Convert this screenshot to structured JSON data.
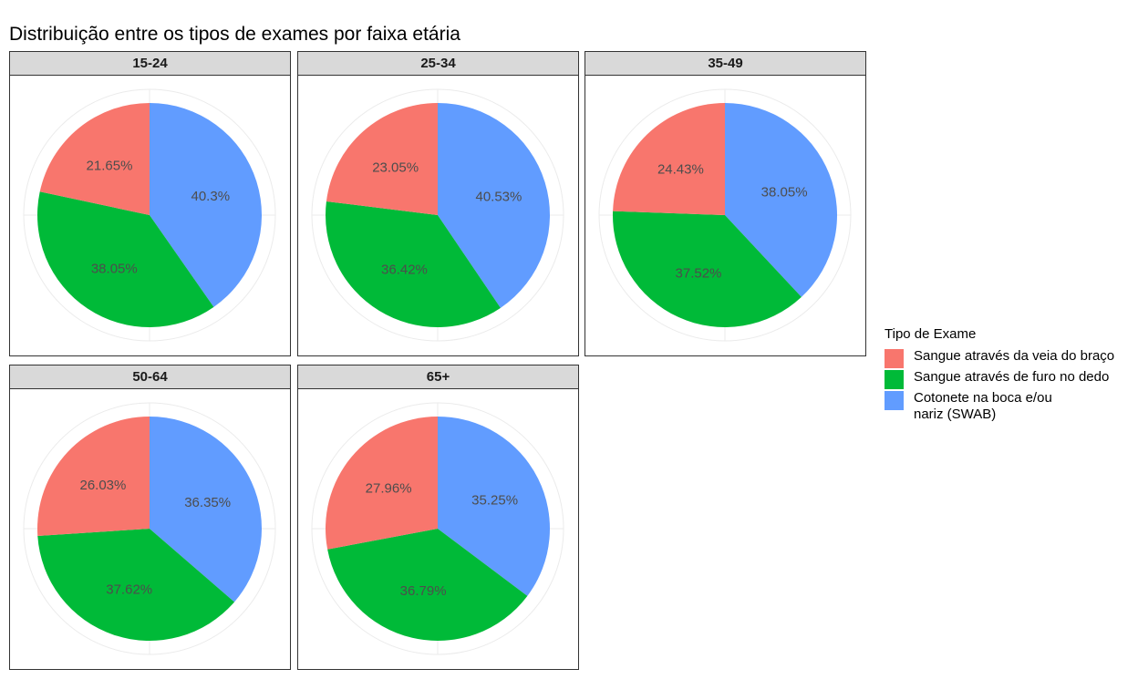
{
  "chart_data": {
    "type": "pie",
    "title": "Distribuição entre os tipos de exames por faixa etária",
    "legend": {
      "title": "Tipo de Exame",
      "placement": "right",
      "entries": [
        {
          "label": "Sangue através da veia do braço",
          "color": "#F8766D"
        },
        {
          "label": "Sangue através de furo no dedo",
          "color": "#00BA38"
        },
        {
          "label": "Cotonete na boca e/ou\n nariz (SWAB)",
          "color": "#619CFF"
        }
      ]
    },
    "series_colors": [
      "#619CFF",
      "#00BA38",
      "#F8766D"
    ],
    "panels": [
      {
        "name": "15-24",
        "values": [
          40.3,
          38.05,
          21.65
        ],
        "labels": [
          "40.3%",
          "38.05%",
          "21.65%"
        ]
      },
      {
        "name": "25-34",
        "values": [
          40.53,
          36.42,
          23.05
        ],
        "labels": [
          "40.53%",
          "36.42%",
          "23.05%"
        ]
      },
      {
        "name": "35-49",
        "values": [
          38.05,
          37.52,
          24.43
        ],
        "labels": [
          "38.05%",
          "37.52%",
          "24.43%"
        ]
      },
      {
        "name": "50-64",
        "values": [
          36.35,
          37.62,
          26.03
        ],
        "labels": [
          "36.35%",
          "37.62%",
          "26.03%"
        ]
      },
      {
        "name": "65+",
        "values": [
          35.25,
          36.79,
          27.96
        ],
        "labels": [
          "35.25%",
          "36.79%",
          "27.96%"
        ]
      }
    ]
  }
}
